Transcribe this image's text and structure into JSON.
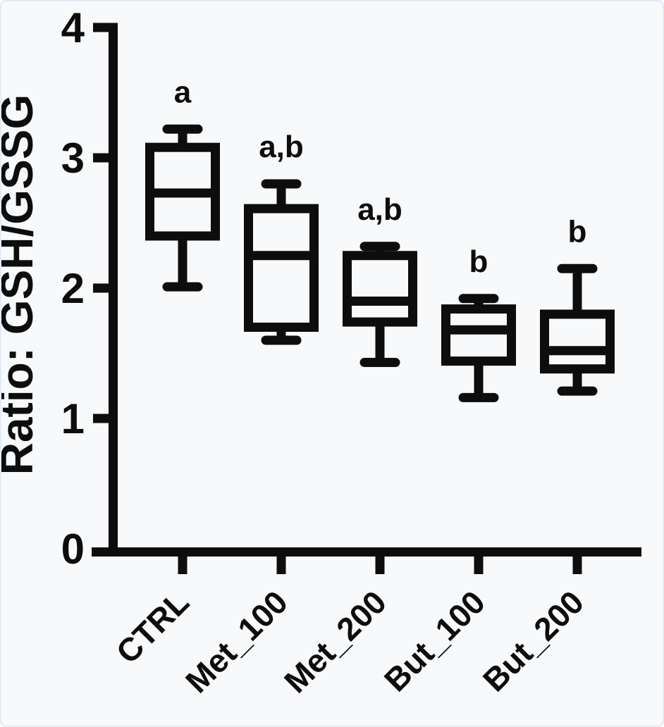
{
  "chart_data": {
    "type": "box",
    "title": "",
    "ylabel": "Ratio: GSH/GSSG",
    "xlabel": "",
    "ylim": [
      0,
      4
    ],
    "yticks": [
      0,
      1,
      2,
      3,
      4
    ],
    "grid": false,
    "legend": "none",
    "categories": [
      "CTRL",
      "Met_100",
      "Met_200",
      "But_100",
      "But_200"
    ],
    "series": [
      {
        "name": "CTRL",
        "min": 2.01,
        "q1": 2.4,
        "median": 2.73,
        "q3": 3.08,
        "max": 3.22,
        "annotation": "a"
      },
      {
        "name": "Met_100",
        "min": 1.6,
        "q1": 1.7,
        "median": 2.25,
        "q3": 2.61,
        "max": 2.8,
        "annotation": "a,b"
      },
      {
        "name": "Met_200",
        "min": 1.43,
        "q1": 1.74,
        "median": 1.9,
        "q3": 2.25,
        "max": 2.32,
        "annotation": "a,b"
      },
      {
        "name": "But_100",
        "min": 1.16,
        "q1": 1.44,
        "median": 1.68,
        "q3": 1.84,
        "max": 1.92,
        "annotation": "b"
      },
      {
        "name": "But_200",
        "min": 1.21,
        "q1": 1.38,
        "median": 1.52,
        "q3": 1.8,
        "max": 2.15,
        "annotation": "b"
      }
    ],
    "stroke_color": "#0d0d0d",
    "background_color": "#f8f9fb"
  }
}
